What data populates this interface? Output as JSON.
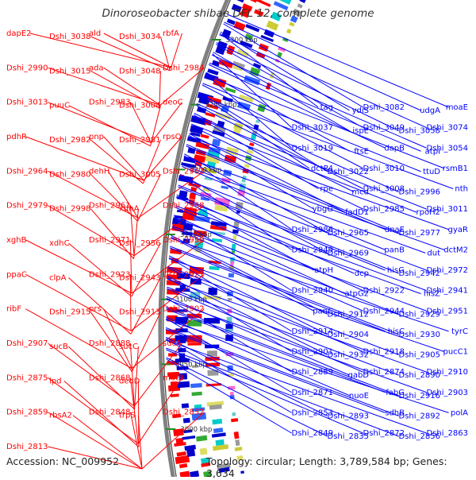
{
  "title": "Dinoroseobacter shibae DFL 12, complete genome",
  "accession": "Accession: NC_009952",
  "topology_line": "Topology: circular; Length: 3,789,584 bp; Genes: 3,634",
  "colors": {
    "left_gene": "#ff0000",
    "right_gene": "#0000ff",
    "ruler": "#808080",
    "tick": "#228b22"
  },
  "ruler_labels": [
    "3300 kbp",
    "3250 kbp",
    "3200 kbp",
    "3150 kbp",
    "3100 kbp",
    "3050 kbp",
    "3000 kbp"
  ],
  "left_labels": [
    "dapE2",
    "Dshi_3038",
    "ald",
    "Dshi_3034",
    "rbfA",
    "Dshi_2990",
    "Dshi_3015",
    "ada",
    "Dshi_3048",
    "Dshi_2984",
    "Dshi_3013",
    "puuC",
    "Dshi_2983",
    "Dshi_3004",
    "deoC",
    "pdhR",
    "Dshi_2982",
    "pnp",
    "Dshi_2981",
    "rpsO",
    "Dshi_2964",
    "Dshi_2980",
    "dehH",
    "Dshi_3005",
    "Dshi_2962",
    "Dshi_2979",
    "Dshi_2998",
    "Dshi_2961",
    "xdhA",
    "Dshi_2968",
    "xghB",
    "xdhC",
    "Dshi_2971",
    "Dshi_2956",
    "Dshi_2950",
    "ppaC",
    "clpA",
    "Dshi_2923",
    "Dshi_2943",
    "Dshi_2921",
    "ribF",
    "Dshi_2915",
    "prs",
    "Dshi_2913",
    "Dshi_2902",
    "Dshi_2907",
    "sucB",
    "Dshi_2888",
    "sucC",
    "sucA",
    "Dshi_2875",
    "lpd",
    "Dshi_2868",
    "deoD",
    "mutB",
    "Dshi_2859",
    "rbsA2",
    "Dshi_2848",
    "trpS",
    "Dshi_2832",
    "Dshi_2813"
  ],
  "right_labels": [
    "moaE",
    "udgA",
    "Dshi_3082",
    "ydiS",
    "tag",
    "Dshi_3074",
    "Dshi_3058",
    "Dshi_3049",
    "ispE",
    "Dshi_3037",
    "Dshi_3054",
    "atpI",
    "dapB",
    "ftsE",
    "Dshi_3019",
    "rsmB1",
    "ttuD",
    "Dshi_3010",
    "Dshi_3022",
    "dctP4",
    "nth",
    "Dshi_2996",
    "Dshi_3008",
    "mcd",
    "rpe",
    "Dshi_3011",
    "rpoH2",
    "Dshi_2985",
    "fadD1",
    "ybgG",
    "gyaR",
    "Dshi_2977",
    "dnaE",
    "Dshi_2965",
    "Dshi_2986",
    "dctM2",
    "dut",
    "panB",
    "Dshi_2969",
    "Dshi_2949",
    "Dshi_2972",
    "Dshi_2942",
    "hisG",
    "dcp",
    "atpH",
    "Dshi_2941",
    "hisZ",
    "Dshi_2922",
    "atpG2",
    "Dshi_2940",
    "Dshi_2951",
    "Dshi_2929",
    "Dshi_2944",
    "Dshi_2912",
    "panC",
    "tyrC",
    "Dshi_2930",
    "hisC",
    "Dshi_2904",
    "Dshi_2914",
    "pucC1",
    "Dshi_2905",
    "Dshi_2918",
    "Dshi_2932",
    "Dshi_2901",
    "Dshi_2910",
    "Dshi_2890",
    "Dshi_2874",
    "gabD",
    "Dshi_2889",
    "Dshi_2903",
    "Dshi_2916",
    "fabG",
    "nuoE",
    "Dshi_2871",
    "polA",
    "Dshi_2892",
    "sdhB",
    "Dshi_2893",
    "Dshi_2853",
    "Dshi_2863",
    "Dshi_2856",
    "Dshi_2872",
    "Dshi_2835",
    "Dshi_2849"
  ]
}
